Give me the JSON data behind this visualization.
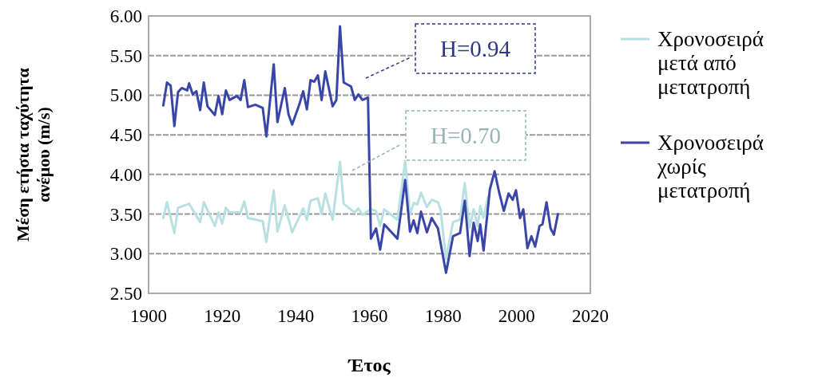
{
  "chart_data": {
    "type": "line",
    "xlabel": "Έτος",
    "ylabel": "Μέση ετήσια ταχύτητα ανέμου (m/s)",
    "xlim": [
      1900,
      2020
    ],
    "xticks": [
      1900,
      1920,
      1940,
      1960,
      1980,
      2000,
      2020
    ],
    "ylim": [
      2.5,
      6
    ],
    "yticks": [
      {
        "value": 2.5,
        "label": "2.50"
      },
      {
        "value": 3,
        "label": "3.00"
      },
      {
        "value": 3.5,
        "label": "3.50"
      },
      {
        "value": 4,
        "label": "4.00"
      },
      {
        "value": 4.5,
        "label": "4.50"
      },
      {
        "value": 5,
        "label": "5.00"
      },
      {
        "value": 5.5,
        "label": "5.50"
      },
      {
        "value": 6,
        "label": "6.00"
      }
    ],
    "grid": "y",
    "legend": "right",
    "line_style": "solid",
    "marker": "none",
    "series": [
      {
        "name": "Χρονοσειρά μετά από μετατροπή",
        "color": "#b8e0e3",
        "x": [
          1904,
          1905,
          1907,
          1908,
          1911,
          1914,
          1915,
          1918,
          1919,
          1920,
          1921,
          1922,
          1925,
          1926,
          1927,
          1931,
          1932,
          1934,
          1935,
          1937,
          1939,
          1942,
          1943,
          1944,
          1946,
          1947,
          1948,
          1950,
          1952,
          1953,
          1956,
          1957,
          1958.1,
          1960.4,
          1961.8,
          1962.9,
          1964,
          1967.6,
          1969.7,
          1971,
          1972,
          1973,
          1974,
          1975.6,
          1976.9,
          1978.6,
          1979.3,
          1980.8,
          1982.7,
          1984.6,
          1985.9,
          1987.2,
          1988.3,
          1989.4,
          1990.1,
          1991,
          1992.2
        ],
        "values": [
          3.45,
          3.65,
          3.26,
          3.58,
          3.63,
          3.4,
          3.65,
          3.35,
          3.52,
          3.38,
          3.58,
          3.52,
          3.52,
          3.66,
          3.45,
          3.41,
          3.15,
          3.8,
          3.28,
          3.61,
          3.27,
          3.57,
          3.43,
          3.67,
          3.7,
          3.5,
          3.76,
          3.43,
          4.16,
          3.63,
          3.52,
          3.57,
          3.49,
          3.56,
          3.54,
          3.35,
          3.56,
          3.43,
          4.17,
          3.49,
          3.64,
          3.62,
          3.77,
          3.59,
          3.68,
          3.65,
          3.56,
          2.93,
          3.4,
          3.43,
          3.89,
          3.33,
          3.56,
          3.35,
          3.6,
          3.45,
          3.72
        ]
      },
      {
        "name": "Χρονοσειρά χωρίς μετατροπή",
        "color": "#3a45a8",
        "x": [
          1904,
          1905,
          1906,
          1907,
          1908,
          1909,
          1910.5,
          1911,
          1912,
          1913,
          1914,
          1915,
          1916,
          1918,
          1919,
          1920,
          1921,
          1922,
          1924,
          1925,
          1926,
          1927,
          1929,
          1931,
          1932,
          1934,
          1935,
          1937,
          1938,
          1939,
          1941,
          1942,
          1943,
          1944,
          1945,
          1946,
          1947,
          1948,
          1950,
          1951,
          1952,
          1953,
          1955,
          1956,
          1957,
          1958.1,
          1959.6,
          1960.4,
          1961.8,
          1962.9,
          1964,
          1967.6,
          1969.7,
          1971,
          1972,
          1973,
          1974,
          1975.6,
          1976.9,
          1978.6,
          1980.8,
          1982.7,
          1984.6,
          1985.9,
          1987.2,
          1988.3,
          1989.4,
          1990.1,
          1991,
          1992.7,
          1994,
          1995.2,
          1996.5,
          1997.8,
          1998.9,
          1999.8,
          2000.9,
          2001.8,
          2002.9,
          2004,
          2005,
          2006.2,
          2007,
          2008.1,
          2009.2,
          2010.1,
          2011.2
        ],
        "values": [
          4.87,
          5.16,
          5.12,
          4.61,
          5.04,
          5.09,
          5.06,
          5.15,
          5.01,
          5.05,
          4.81,
          5.16,
          4.86,
          4.75,
          4.99,
          4.76,
          5.06,
          4.94,
          4.99,
          4.94,
          5.19,
          4.85,
          4.88,
          4.84,
          4.48,
          5.39,
          4.66,
          5.09,
          4.76,
          4.63,
          4.89,
          5.05,
          4.82,
          5.19,
          5.17,
          5.25,
          4.94,
          5.3,
          4.86,
          4.94,
          5.87,
          5.16,
          5.11,
          4.94,
          5.01,
          4.94,
          4.97,
          3.19,
          3.32,
          3.05,
          3.37,
          3.19,
          3.93,
          3.28,
          3.42,
          3.26,
          3.53,
          3.27,
          3.45,
          3.32,
          2.76,
          3.22,
          3.26,
          3.67,
          2.97,
          3.39,
          3.16,
          3.37,
          3.04,
          3.81,
          4.04,
          3.78,
          3.54,
          3.76,
          3.68,
          3.8,
          3.45,
          3.56,
          3.07,
          3.22,
          3.09,
          3.35,
          3.37,
          3.65,
          3.32,
          3.24,
          3.5
        ]
      }
    ],
    "annotations": [
      "H=0.70",
      "H=0.94"
    ]
  }
}
